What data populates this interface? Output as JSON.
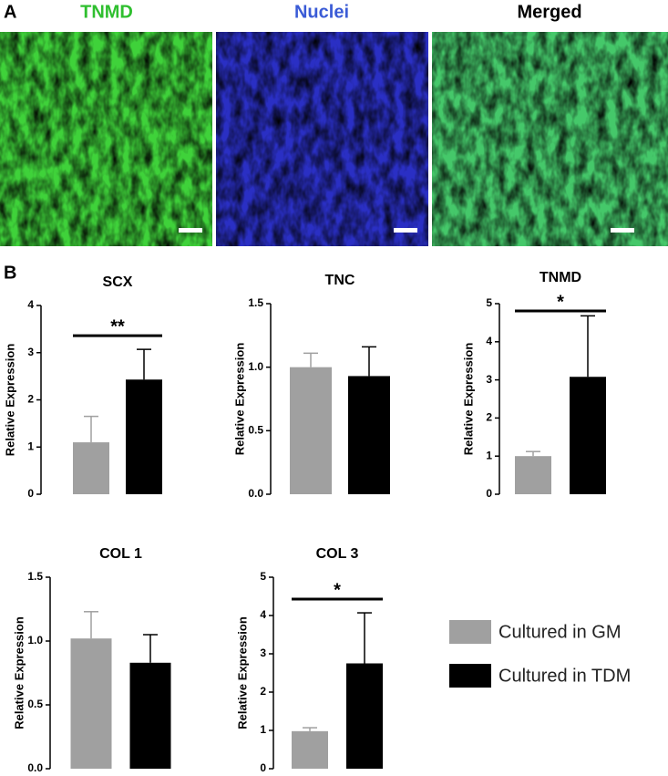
{
  "panels": {
    "a": "A",
    "b": "B"
  },
  "images": [
    {
      "label": "TNMD",
      "color": "#2fbf2f"
    },
    {
      "label": "Nuclei",
      "color": "#3a5bd6"
    },
    {
      "label": "Merged",
      "color": "#000000"
    }
  ],
  "legend": [
    {
      "name": "Cultured in GM",
      "color": "#a0a0a0"
    },
    {
      "name": "Cultured in TDM",
      "color": "#000000"
    }
  ],
  "chart_data": [
    {
      "type": "bar",
      "title": "SCX",
      "ylabel": "Relative Expression",
      "categories": [
        null,
        null
      ],
      "values": [
        1.1,
        2.43
      ],
      "errors": [
        0.55,
        0.64
      ],
      "colors": [
        "#a0a0a0",
        "#000000"
      ],
      "significance": "**",
      "ylim": [
        0,
        4
      ],
      "yticks": [
        0,
        1,
        2,
        3,
        4
      ]
    },
    {
      "type": "bar",
      "title": "TNC",
      "ylabel": "Relative Expression",
      "categories": [
        null,
        null
      ],
      "values": [
        1.0,
        0.93
      ],
      "errors": [
        0.11,
        0.23
      ],
      "colors": [
        "#a0a0a0",
        "#000000"
      ],
      "ylim": [
        0,
        1.5
      ],
      "yticks": [
        {
          "value": 0,
          "label": "0.0"
        },
        0.5,
        {
          "value": 1,
          "label": "1.0"
        },
        1.5
      ]
    },
    {
      "type": "bar",
      "title": "TNMD",
      "ylabel": "Relative Expression",
      "categories": [
        null,
        null
      ],
      "values": [
        1.0,
        3.08
      ],
      "errors": [
        0.12,
        1.6
      ],
      "colors": [
        "#a0a0a0",
        "#000000"
      ],
      "significance": "*",
      "ylim": [
        0,
        5
      ],
      "yticks": [
        0,
        1,
        2,
        3,
        4,
        5
      ]
    },
    {
      "type": "bar",
      "title": "COL 1",
      "ylabel": "Relative Expression",
      "categories": [
        null,
        null
      ],
      "values": [
        1.02,
        0.83
      ],
      "errors": [
        0.21,
        0.22
      ],
      "colors": [
        "#a0a0a0",
        "#000000"
      ],
      "ylim": [
        0,
        1.5
      ],
      "yticks": [
        {
          "value": 0,
          "label": "0.0"
        },
        0.5,
        {
          "value": 1,
          "label": "1.0"
        },
        1.5
      ]
    },
    {
      "type": "bar",
      "title": "COL 3",
      "ylabel": "Relative Expression",
      "categories": [
        null,
        null
      ],
      "values": [
        0.98,
        2.75
      ],
      "errors": [
        0.09,
        1.32
      ],
      "colors": [
        "#a0a0a0",
        "#000000"
      ],
      "significance": "*",
      "ylim": [
        0,
        5
      ],
      "yticks": [
        0,
        1,
        2,
        3,
        4,
        5
      ]
    }
  ]
}
